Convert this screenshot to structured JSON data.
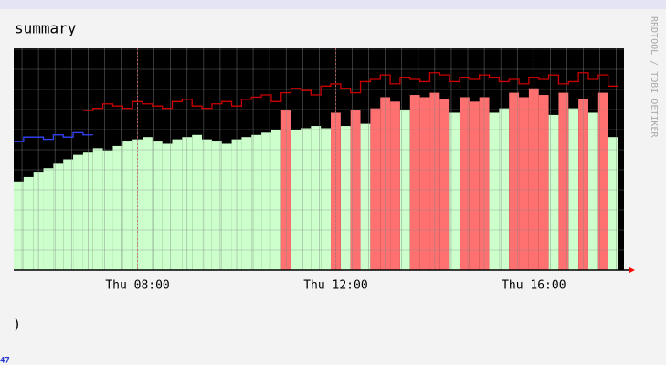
{
  "chart_data": {
    "type": "rrd",
    "title": "summary",
    "side_text": "RRDTOOL / TOBI OETIKER",
    "footer_text": ")",
    "corner_text": "47",
    "x": [
      5.5,
      5.7,
      5.9,
      6.1,
      6.3,
      6.5,
      6.7,
      6.9,
      7.1,
      7.3,
      7.5,
      7.7,
      7.9,
      8.1,
      8.3,
      8.5,
      8.7,
      8.9,
      9.1,
      9.3,
      9.5,
      9.7,
      9.9,
      10.1,
      10.3,
      10.5,
      10.7,
      10.9,
      11.1,
      11.3,
      11.5,
      11.7,
      11.9,
      12.1,
      12.3,
      12.5,
      12.7,
      12.9,
      13.1,
      13.3,
      13.5,
      13.7,
      13.9,
      14.1,
      14.3,
      14.5,
      14.7,
      14.9,
      15.1,
      15.3,
      15.5,
      15.7,
      15.9,
      16.1,
      16.3,
      16.5,
      16.7,
      16.9,
      17.1,
      17.3,
      17.5
    ],
    "xlim": [
      5.5,
      17.82
    ],
    "xticks": [
      {
        "value": 8,
        "label": "Thu 08:00"
      },
      {
        "value": 12,
        "label": "Thu 12:00"
      },
      {
        "value": 16,
        "label": "Thu 16:00"
      }
    ],
    "ylim": [
      0,
      100
    ],
    "grid": true,
    "background": "#000000",
    "series": [
      {
        "color": "#ccffcc",
        "kind": "bars",
        "values": [
          40,
          42,
          44,
          46,
          48,
          50,
          52,
          53,
          55,
          54,
          56,
          58,
          59,
          60,
          58,
          57,
          59,
          60,
          61,
          59,
          58,
          57,
          59,
          60,
          61,
          62,
          63,
          null,
          63,
          64,
          65,
          64,
          null,
          65,
          null,
          66,
          null,
          null,
          null,
          72,
          null,
          null,
          null,
          null,
          71,
          null,
          null,
          null,
          71,
          73,
          null,
          null,
          null,
          null,
          70,
          null,
          73,
          null,
          71,
          null,
          60
        ]
      },
      {
        "color": "#ff7070",
        "kind": "bars",
        "values": [
          null,
          null,
          null,
          null,
          null,
          null,
          null,
          null,
          null,
          null,
          null,
          null,
          null,
          null,
          null,
          null,
          null,
          null,
          null,
          null,
          null,
          null,
          null,
          null,
          null,
          null,
          null,
          72,
          null,
          null,
          null,
          null,
          71,
          null,
          72,
          null,
          73,
          78,
          76,
          null,
          79,
          78,
          80,
          77,
          null,
          78,
          76,
          78,
          null,
          null,
          80,
          78,
          82,
          79,
          null,
          80,
          null,
          77,
          null,
          80,
          null
        ]
      },
      {
        "color": "#cc0000",
        "kind": "line",
        "values": [
          null,
          null,
          null,
          null,
          null,
          null,
          null,
          72,
          73,
          75,
          74,
          73,
          76,
          75,
          74,
          73,
          76,
          77,
          74,
          73,
          75,
          76,
          74,
          77,
          78,
          79,
          76,
          80,
          82,
          81,
          79,
          83,
          84,
          82,
          80,
          85,
          86,
          88,
          84,
          87,
          86,
          85,
          89,
          88,
          85,
          87,
          86,
          88,
          87,
          85,
          86,
          84,
          87,
          86,
          88,
          84,
          85,
          89,
          86,
          88,
          83
        ]
      },
      {
        "color": "#3344ff",
        "kind": "line",
        "values": [
          58,
          60,
          60,
          59,
          61,
          60,
          62,
          61,
          null,
          null,
          null,
          null,
          null,
          null,
          null,
          null,
          null,
          null,
          null,
          null,
          null,
          null,
          null,
          null,
          null,
          null,
          null,
          null,
          null,
          null,
          null,
          null,
          null,
          null,
          null,
          null,
          null,
          null,
          null,
          null,
          null,
          null,
          null,
          null,
          null,
          null,
          null,
          null,
          null,
          null,
          null,
          null,
          null,
          null,
          null,
          null,
          null,
          null,
          null,
          null,
          null
        ]
      }
    ]
  }
}
